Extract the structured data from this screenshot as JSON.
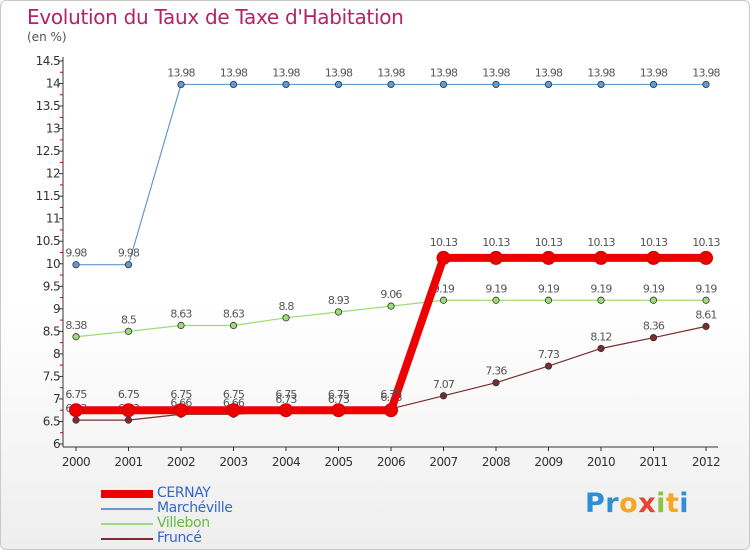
{
  "header": {
    "title": "Evolution du Taux de Taxe d'Habitation",
    "unit": "(en %)"
  },
  "logo": {
    "letters": [
      "P",
      "r",
      "o",
      "x",
      "i",
      "t",
      "i"
    ],
    "colors": [
      "#2f8fd6",
      "#2f8fd6",
      "#f5a623",
      "#e8432d",
      "#8cc63f",
      "#f5a623",
      "#2f8fd6"
    ]
  },
  "chart_data": {
    "type": "line",
    "x": [
      "2000",
      "2001",
      "2002",
      "2003",
      "2004",
      "2005",
      "2006",
      "2007",
      "2008",
      "2009",
      "2010",
      "2011",
      "2012"
    ],
    "ylim": [
      6,
      14.5
    ],
    "yticks": [
      "6",
      "6.5",
      "7",
      "7.5",
      "8",
      "8.5",
      "9",
      "9.5",
      "10",
      "10.5",
      "11",
      "11.5",
      "12",
      "12.5",
      "13",
      "13.5",
      "14",
      "14.5"
    ],
    "grid": false,
    "legend_position": "bottom-left",
    "series": [
      {
        "name": "Fruncé",
        "color": "#7b2d2d",
        "values": [
          6.53,
          6.53,
          6.66,
          6.66,
          6.73,
          6.73,
          6.78,
          7.07,
          7.36,
          7.73,
          8.12,
          8.36,
          8.61
        ],
        "labels": [
          "6.53",
          "6.53",
          "6.66",
          "6.66",
          "6.73",
          "6.73",
          "6.78",
          "7.07",
          "7.36",
          "7.73",
          "8.12",
          "8.36",
          "8.61"
        ]
      },
      {
        "name": "Villebon",
        "color": "#99dd77",
        "values": [
          8.38,
          8.5,
          8.63,
          8.63,
          8.8,
          8.93,
          9.06,
          9.19,
          9.19,
          9.19,
          9.19,
          9.19,
          9.19
        ],
        "labels": [
          "8.38",
          "8.5",
          "8.63",
          "8.63",
          "8.8",
          "8.93",
          "9.06",
          "9.19",
          "9.19",
          "9.19",
          "9.19",
          "9.19",
          "9.19"
        ]
      },
      {
        "name": "Marchéville",
        "color": "#6699cc",
        "values": [
          9.98,
          9.98,
          13.98,
          13.98,
          13.98,
          13.98,
          13.98,
          13.98,
          13.98,
          13.98,
          13.98,
          13.98,
          13.98
        ],
        "labels": [
          "9.98",
          "9.98",
          "13.98",
          "13.98",
          "13.98",
          "13.98",
          "13.98",
          "13.98",
          "13.98",
          "13.98",
          "13.98",
          "13.98",
          "13.98"
        ]
      },
      {
        "name": "CERNAY",
        "color": "#ee0000",
        "values": [
          6.75,
          6.75,
          6.75,
          6.75,
          6.75,
          6.75,
          6.75,
          10.13,
          10.13,
          10.13,
          10.13,
          10.13,
          10.13
        ],
        "labels": [
          "6.75",
          "6.75",
          "6.75",
          "6.75",
          "6.75",
          "6.75",
          "6.75",
          "10.13",
          "10.13",
          "10.13",
          "10.13",
          "10.13",
          "10.13"
        ]
      }
    ],
    "legend_order": [
      "CERNAY",
      "Marchéville",
      "Villebon",
      "Fruncé"
    ]
  }
}
